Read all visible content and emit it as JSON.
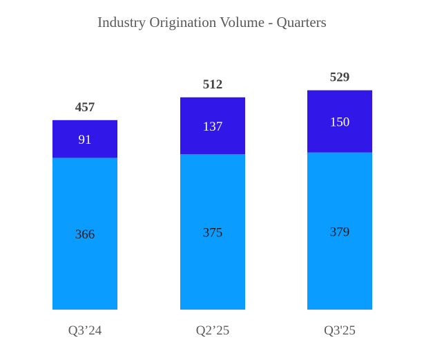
{
  "chart_data": {
    "type": "bar",
    "stacked": true,
    "title": "Industry Origination Volume - Quarters",
    "xlabel": "",
    "ylabel": "",
    "categories": [
      "Q3’24",
      "Q2’25",
      "Q3'25"
    ],
    "series": [
      {
        "values": [
          366,
          375,
          379
        ],
        "color": "#0a9cff"
      },
      {
        "values": [
          91,
          137,
          150
        ],
        "color": "#3118e8"
      }
    ],
    "totals": [
      457,
      512,
      529
    ],
    "ylim": [
      0,
      529
    ],
    "grid": false,
    "legend": "none"
  }
}
